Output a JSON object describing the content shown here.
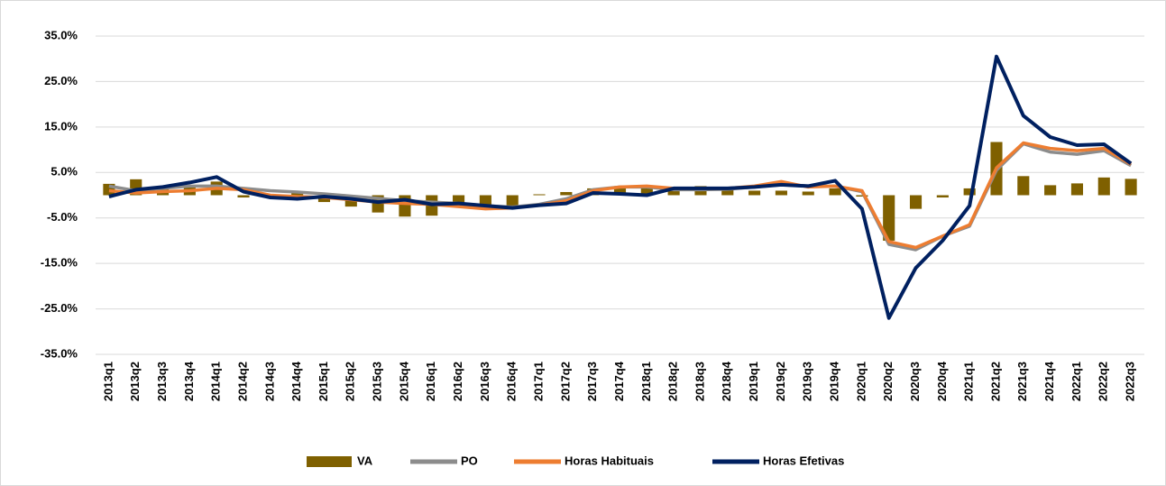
{
  "chart_data": {
    "type": "combo",
    "categories": [
      "2013q1",
      "2013q2",
      "2013q3",
      "2013q4",
      "2014q1",
      "2014q2",
      "2014q3",
      "2014q4",
      "2015q1",
      "2015q2",
      "2015q3",
      "2015q4",
      "2016q1",
      "2016q2",
      "2016q3",
      "2016q4",
      "2017q1",
      "2017q2",
      "2017q3",
      "2017q4",
      "2018q1",
      "2018q2",
      "2018q3",
      "2018q4",
      "2019q1",
      "2019q2",
      "2019q3",
      "2019q4",
      "2020q1",
      "2020q2",
      "2020q3",
      "2020q4",
      "2021q1",
      "2021q2",
      "2021q3",
      "2021q4",
      "2022q1",
      "2022q2",
      "2022q3"
    ],
    "series": [
      {
        "name": "VA",
        "type": "bar",
        "color": "#7f6000",
        "values": [
          2.5,
          3.5,
          1.5,
          2,
          3,
          -0.5,
          0,
          0.5,
          -1.5,
          -2.5,
          -3.8,
          -4.7,
          -4.5,
          -2.5,
          -2.5,
          -2.5,
          0.2,
          0.7,
          1.5,
          2,
          1.5,
          1,
          2,
          1.2,
          1,
          1,
          0.8,
          1.5,
          -0.3,
          -10,
          -3,
          -0.5,
          1.5,
          11.7,
          4.2,
          2.2,
          2.6,
          3.9,
          3.6
        ]
      },
      {
        "name": "PO",
        "type": "line",
        "color": "#8c8c8c",
        "values": [
          2,
          1,
          1.5,
          2,
          2,
          1.5,
          1,
          0.7,
          0.3,
          -0.2,
          -0.7,
          -1.2,
          -1.5,
          -1.8,
          -2.3,
          -2.6,
          -2,
          -0.8,
          1.2,
          1.8,
          1.8,
          1.2,
          1.2,
          1.3,
          1.8,
          2.3,
          2,
          2,
          0.8,
          -10.8,
          -12,
          -9,
          -6.8,
          5.5,
          11.3,
          9.5,
          9,
          9.8,
          6.5
        ]
      },
      {
        "name": "Horas Habituais",
        "type": "line",
        "color": "#ed7d31",
        "values": [
          1,
          0.5,
          0.8,
          1,
          1.5,
          1.2,
          0,
          -0.3,
          -0.5,
          -1,
          -1.5,
          -1.8,
          -2,
          -2.5,
          -3,
          -2.8,
          -2.2,
          -1.2,
          1,
          1.8,
          2,
          1.5,
          1.5,
          1.5,
          2,
          3,
          1.8,
          2,
          1,
          -10.2,
          -11.5,
          -9,
          -6.5,
          6,
          11.5,
          10.3,
          9.8,
          10.3,
          6.8
        ]
      },
      {
        "name": "Horas Efetivas",
        "type": "line",
        "color": "#002060",
        "values": [
          -0.3,
          1.2,
          1.8,
          2.8,
          4,
          0.8,
          -0.5,
          -0.8,
          -0.3,
          -0.8,
          -1.5,
          -1,
          -2,
          -1.8,
          -2.3,
          -2.8,
          -2.2,
          -1.8,
          0.5,
          0.3,
          0,
          1.5,
          1.5,
          1.5,
          1.8,
          2.3,
          2,
          3.2,
          -3,
          -27,
          -16,
          -10,
          -2.3,
          30.5,
          17.5,
          12.8,
          11,
          11.2,
          7
        ]
      }
    ],
    "ylim": [
      -35,
      35
    ],
    "yticks": [
      {
        "value": -35,
        "label": "-35.0%"
      },
      {
        "value": -25,
        "label": "-25.0%"
      },
      {
        "value": -15,
        "label": "-15.0%"
      },
      {
        "value": -5,
        "label": "-5.0%"
      },
      {
        "value": 5,
        "label": "5.0%"
      },
      {
        "value": 15,
        "label": "15.0%"
      },
      {
        "value": 25,
        "label": "25.0%"
      },
      {
        "value": 35,
        "label": "35.0%"
      }
    ],
    "grid": true,
    "legend": "bottom"
  }
}
